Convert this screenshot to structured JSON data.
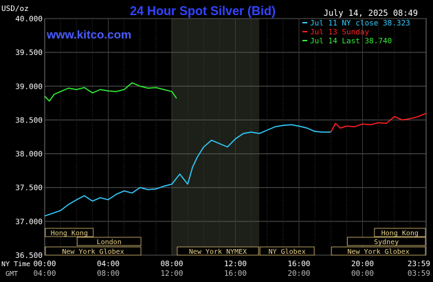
{
  "header": {
    "title": "24 Hour Spot Silver (Bid)",
    "unit": "USD/oz",
    "timestamp": "July 14, 2025 08:49",
    "watermark": "www.kitco.com"
  },
  "legend": [
    {
      "label": "Jul 11 NY close 38.323",
      "color": "#33ccff"
    },
    {
      "label": "Jul 13 Sunday",
      "color": "#ff2020"
    },
    {
      "label": "Jul 14 Last 38.740",
      "color": "#33ee33"
    }
  ],
  "axis_labels": {
    "ny_time": "NY Time",
    "gmt": "GMT"
  },
  "sessions": [
    {
      "label": "Hong Kong",
      "start": 0,
      "end": 3.1
    },
    {
      "label": "London",
      "start": 2.0,
      "end": 6.1
    },
    {
      "label": "New York Globex",
      "start": 0,
      "end": 6.1
    },
    {
      "label": "New York NYMEX",
      "start": 8.3,
      "end": 13.5
    },
    {
      "label": "NY Globex",
      "start": 13.5,
      "end": 17.0
    },
    {
      "label": "Hong Kong",
      "start": 20.7,
      "end": 24.0
    },
    {
      "label": "Sydney",
      "start": 19.0,
      "end": 24.0
    },
    {
      "label": "New York Globex",
      "start": 18.0,
      "end": 24.0
    }
  ],
  "chart_data": {
    "type": "line",
    "title": "24 Hour Spot Silver (Bid)",
    "ylabel": "USD/oz",
    "ylim": [
      36.5,
      40.0
    ],
    "xlim": [
      0,
      24
    ],
    "yticks": [
      "40.000",
      "39.500",
      "39.000",
      "38.500",
      "38.000",
      "37.500",
      "37.000",
      "36.500"
    ],
    "ytick_values": [
      40.0,
      39.5,
      39.0,
      38.5,
      38.0,
      37.5,
      37.0,
      36.5
    ],
    "xticks_ny": [
      "00:00",
      "04:00",
      "08:00",
      "12:00",
      "16:00",
      "20:00",
      "23:59"
    ],
    "xticks_gmt": [
      "04:00",
      "08:00",
      "12:00",
      "16:00",
      "20:00",
      "00:00",
      "03:59"
    ],
    "xtick_values": [
      0,
      4,
      8,
      12,
      16,
      20,
      24
    ],
    "shaded_periods": [
      [
        8.0,
        13.5
      ]
    ],
    "grid": true,
    "series": [
      {
        "name": "Jul 11 NY close 38.323",
        "color": "#33ccff",
        "x": [
          0,
          0.5,
          1.0,
          1.5,
          2.0,
          2.5,
          3.0,
          3.5,
          4.0,
          4.5,
          5.0,
          5.5,
          6.0,
          6.5,
          7.0,
          7.5,
          8.0,
          8.5,
          9.0,
          9.3,
          9.6,
          10.0,
          10.5,
          11.0,
          11.5,
          12.0,
          12.5,
          13.0,
          13.5,
          14.0,
          14.5,
          15.0,
          15.5,
          16.0,
          16.5,
          17.0,
          17.5,
          18.0
        ],
        "y": [
          37.08,
          37.12,
          37.16,
          37.25,
          37.32,
          37.38,
          37.3,
          37.35,
          37.32,
          37.4,
          37.45,
          37.42,
          37.5,
          37.47,
          37.48,
          37.52,
          37.55,
          37.7,
          37.55,
          37.8,
          37.95,
          38.1,
          38.2,
          38.15,
          38.1,
          38.22,
          38.3,
          38.32,
          38.3,
          38.35,
          38.4,
          38.42,
          38.43,
          38.41,
          38.38,
          38.33,
          38.32,
          38.32
        ]
      },
      {
        "name": "Jul 13 Sunday",
        "color": "#ff2020",
        "x": [
          18.0,
          18.3,
          18.6,
          19.0,
          19.5,
          20.0,
          20.5,
          21.0,
          21.5,
          22.0,
          22.5,
          23.0,
          23.5,
          24.0
        ],
        "y": [
          38.32,
          38.45,
          38.38,
          38.41,
          38.4,
          38.44,
          38.43,
          38.46,
          38.45,
          38.55,
          38.5,
          38.52,
          38.55,
          38.6
        ]
      },
      {
        "name": "Jul 14 Last 38.740",
        "color": "#33ee33",
        "x": [
          0,
          0.3,
          0.6,
          1.0,
          1.5,
          2.0,
          2.5,
          3.0,
          3.5,
          4.0,
          4.5,
          5.0,
          5.5,
          6.0,
          6.5,
          7.0,
          7.5,
          8.0,
          8.3
        ],
        "y": [
          38.85,
          38.78,
          38.88,
          38.92,
          38.97,
          38.95,
          38.98,
          38.9,
          38.95,
          38.93,
          38.92,
          38.95,
          39.05,
          39.0,
          38.97,
          38.98,
          38.95,
          38.92,
          38.82
        ]
      }
    ]
  }
}
